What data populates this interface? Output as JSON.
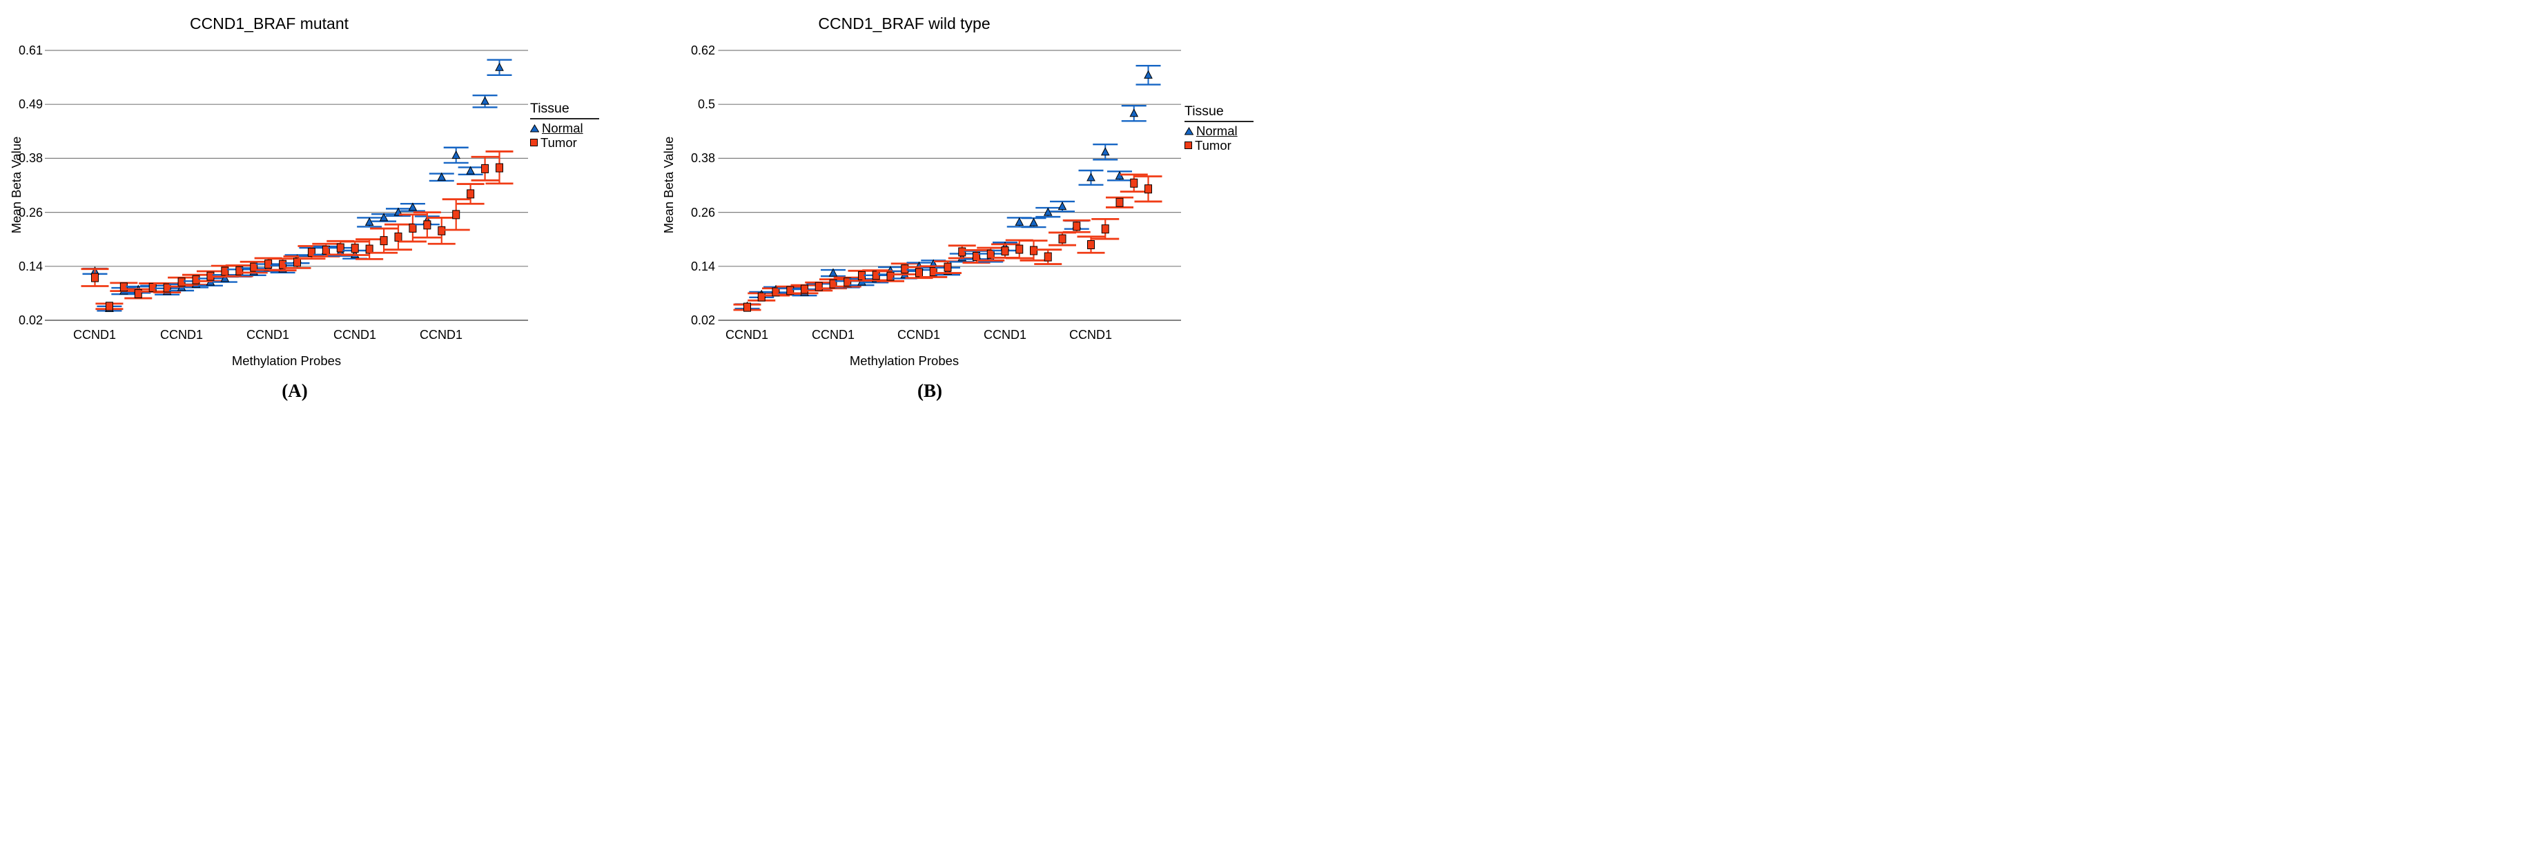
{
  "figure": {
    "background": "#ffffff"
  },
  "colors": {
    "normal": "#1565c4",
    "tumor": "#f03c16",
    "gridline": "#7f7f7f",
    "axis": "#595959",
    "marker_outline": "#000000",
    "text": "#000000"
  },
  "legend": {
    "title": "Tissue",
    "items": [
      {
        "label": "Normal",
        "marker": "triangle-icon",
        "color": "#1565c4"
      },
      {
        "label": "Tumor",
        "marker": "square-icon",
        "color": "#f03c16"
      }
    ],
    "position": "right"
  },
  "captions": {
    "a": "(A)",
    "b": "(B)"
  },
  "chart_data": [
    {
      "type": "scatter",
      "panel": "A",
      "title": "CCND1_BRAF mutant",
      "xlabel": "Methylation Probes",
      "ylabel": "Mean Beta Value",
      "grid": true,
      "legend_position": "right",
      "n_points": 29,
      "x_tick_label": "CCND1",
      "x_tick_positions": [
        1,
        7,
        13,
        19,
        25
      ],
      "y_ticks": [
        0.61,
        0.49,
        0.38,
        0.26,
        0.14,
        0.02
      ],
      "ylim": [
        0.02,
        0.61
      ],
      "series": [
        {
          "name": "Normal",
          "marker": "triangle",
          "values": [
            0.129,
            0.046,
            0.085,
            0.088,
            0.09,
            0.084,
            0.093,
            0.1,
            0.105,
            0.113,
            0.125,
            0.128,
            0.137,
            0.134,
            0.156,
            0.172,
            0.175,
            0.172,
            0.166,
            0.238,
            0.248,
            0.26,
            0.271,
            0.242,
            0.338,
            0.386,
            0.352,
            0.497,
            0.572
          ],
          "ci_half": [
            0.006,
            0.005,
            0.007,
            0.007,
            0.007,
            0.007,
            0.007,
            0.007,
            0.008,
            0.008,
            0.008,
            0.008,
            0.008,
            0.008,
            0.009,
            0.009,
            0.009,
            0.009,
            0.009,
            0.01,
            0.008,
            0.008,
            0.008,
            0.009,
            0.008,
            0.016,
            0.008,
            0.013,
            0.017
          ]
        },
        {
          "name": "Tumor",
          "marker": "square",
          "values": [
            0.115,
            0.051,
            0.094,
            0.079,
            0.093,
            0.092,
            0.105,
            0.11,
            0.118,
            0.129,
            0.13,
            0.138,
            0.145,
            0.144,
            0.149,
            0.171,
            0.176,
            0.181,
            0.18,
            0.178,
            0.197,
            0.205,
            0.225,
            0.232,
            0.219,
            0.255,
            0.301,
            0.357,
            0.359
          ],
          "ci_half": [
            0.019,
            0.006,
            0.009,
            0.01,
            0.009,
            0.01,
            0.01,
            0.011,
            0.011,
            0.012,
            0.012,
            0.012,
            0.013,
            0.013,
            0.013,
            0.014,
            0.014,
            0.015,
            0.015,
            0.022,
            0.027,
            0.028,
            0.03,
            0.028,
            0.029,
            0.034,
            0.022,
            0.026,
            0.035
          ]
        }
      ]
    },
    {
      "type": "scatter",
      "panel": "B",
      "title": "CCND1_BRAF wild type",
      "xlabel": "Methylation Probes",
      "ylabel": "Mean Beta Value",
      "grid": true,
      "legend_position": "right",
      "n_points": 29,
      "x_tick_label": "CCND1",
      "x_tick_positions": [
        1,
        7,
        13,
        19,
        25
      ],
      "y_ticks": [
        0.62,
        0.5,
        0.38,
        0.26,
        0.14,
        0.02
      ],
      "ylim": [
        0.02,
        0.62
      ],
      "series": [
        {
          "name": "Normal",
          "marker": "triangle",
          "values": [
            0.051,
            0.077,
            0.088,
            0.085,
            0.082,
            0.094,
            0.125,
            0.1,
            0.105,
            0.112,
            0.13,
            0.121,
            0.14,
            0.145,
            0.129,
            0.159,
            0.165,
            0.159,
            0.184,
            0.238,
            0.237,
            0.26,
            0.273,
            0.232,
            0.337,
            0.394,
            0.341,
            0.48,
            0.565
          ],
          "ci_half": [
            0.005,
            0.006,
            0.006,
            0.006,
            0.007,
            0.007,
            0.007,
            0.007,
            0.007,
            0.008,
            0.008,
            0.008,
            0.008,
            0.008,
            0.008,
            0.009,
            0.009,
            0.009,
            0.009,
            0.01,
            0.01,
            0.01,
            0.011,
            0.009,
            0.016,
            0.017,
            0.01,
            0.017,
            0.021
          ]
        },
        {
          "name": "Tumor",
          "marker": "square",
          "values": [
            0.049,
            0.072,
            0.083,
            0.086,
            0.089,
            0.095,
            0.101,
            0.105,
            0.119,
            0.12,
            0.118,
            0.134,
            0.126,
            0.128,
            0.138,
            0.172,
            0.162,
            0.167,
            0.174,
            0.178,
            0.175,
            0.161,
            0.201,
            0.229,
            0.188,
            0.223,
            0.282,
            0.325,
            0.312
          ],
          "ci_half": [
            0.006,
            0.008,
            0.008,
            0.009,
            0.009,
            0.009,
            0.01,
            0.01,
            0.011,
            0.011,
            0.011,
            0.012,
            0.012,
            0.012,
            0.013,
            0.014,
            0.014,
            0.014,
            0.015,
            0.02,
            0.022,
            0.016,
            0.014,
            0.013,
            0.018,
            0.022,
            0.011,
            0.019,
            0.028
          ]
        }
      ]
    }
  ]
}
